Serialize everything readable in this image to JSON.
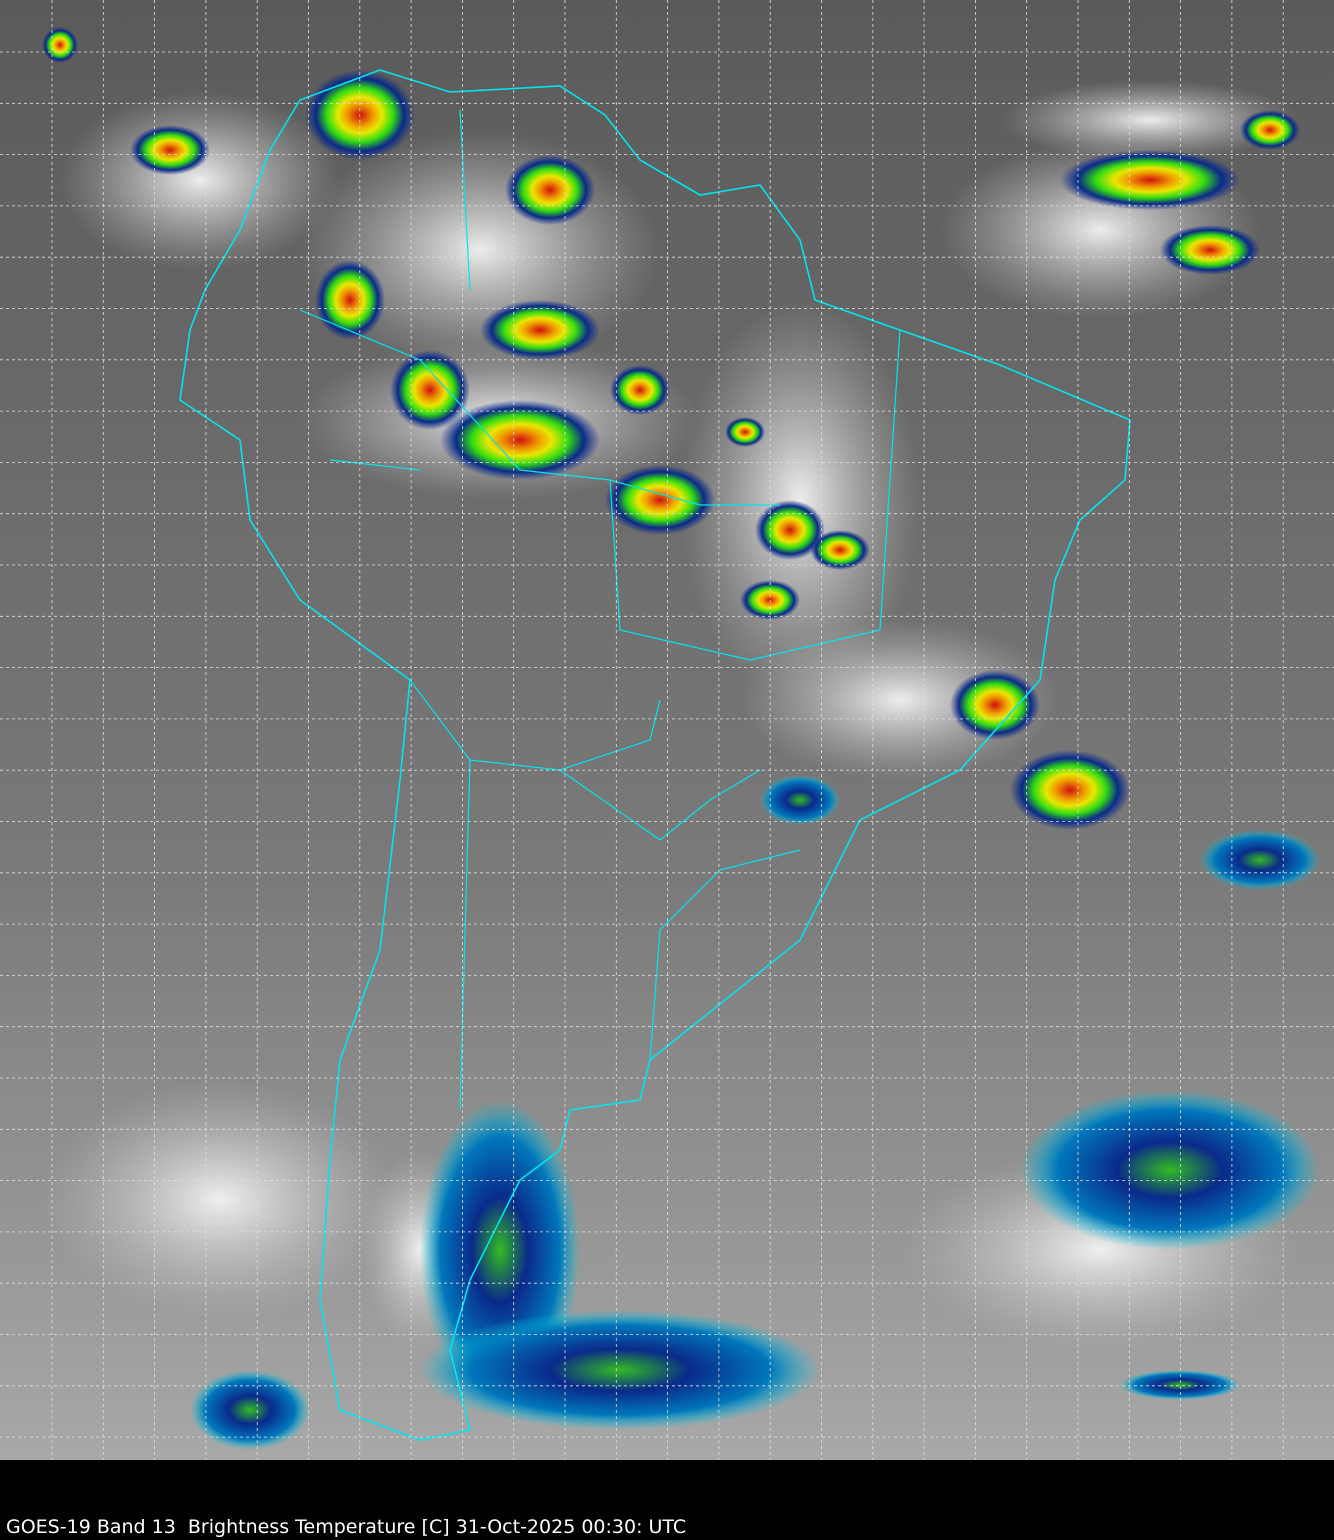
{
  "caption": "GOES-19 Band 13  Brightness Temperature [C] 31-Oct-2025 00:30: UTC",
  "map": {
    "region": "South America",
    "product": "Infrared brightness temperature",
    "grid": true,
    "colors": {
      "background": "#6e6e6e",
      "coastline": "#00e5ee",
      "grid": "#e0e0e0",
      "cold_cloud_blue": "#0a2a8a",
      "cold_cloud_cyan": "#00c8e0",
      "very_cold_green": "#33dd11",
      "very_cold_yellow": "#f0e000",
      "extreme_cold_red": "#e01010"
    }
  }
}
